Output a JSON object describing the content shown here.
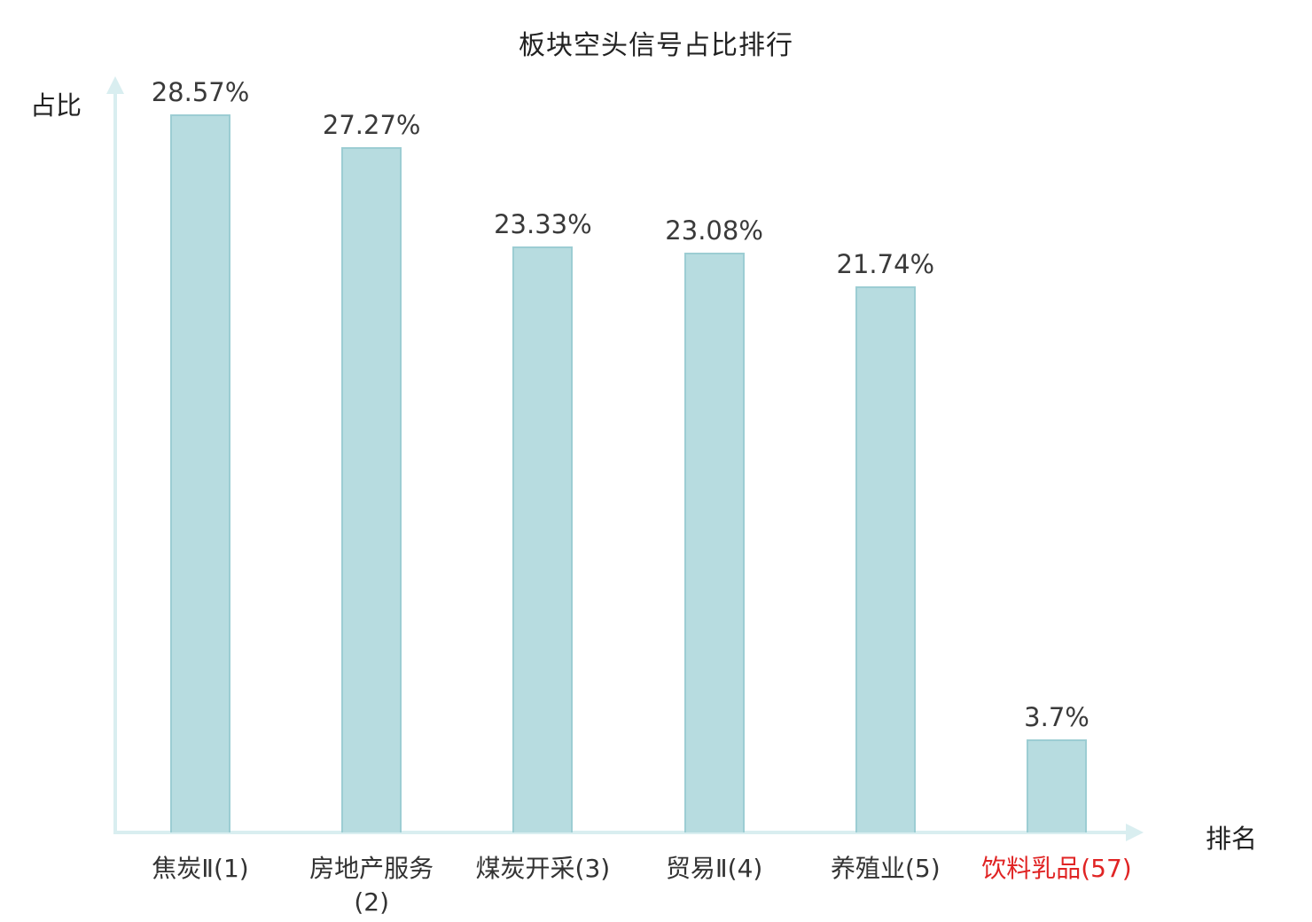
{
  "title": "板块空头信号占比排行",
  "chart_data": {
    "type": "bar",
    "title": "板块空头信号占比排行",
    "xlabel": "排名",
    "ylabel": "占比",
    "categories": [
      "焦炭Ⅱ(1)",
      "房地产服务(2)",
      "煤炭开采(3)",
      "贸易Ⅱ(4)",
      "养殖业(5)",
      "饮料乳品(57)"
    ],
    "values": [
      28.57,
      27.27,
      23.33,
      23.08,
      21.74,
      3.7
    ],
    "value_labels": [
      "28.57%",
      "27.27%",
      "23.33%",
      "23.08%",
      "21.74%",
      "3.7%"
    ],
    "ylim": [
      0,
      30
    ],
    "grid": false,
    "legend": false,
    "bar_fill_color": "#b7dce0",
    "bar_border_color": "#9ccdd3",
    "axis_color": "#d9eef0",
    "value_label_color": "#3a3a3a",
    "category_label_color": "#333333",
    "highlight_index": 5,
    "highlight_color": "#e02424"
  }
}
